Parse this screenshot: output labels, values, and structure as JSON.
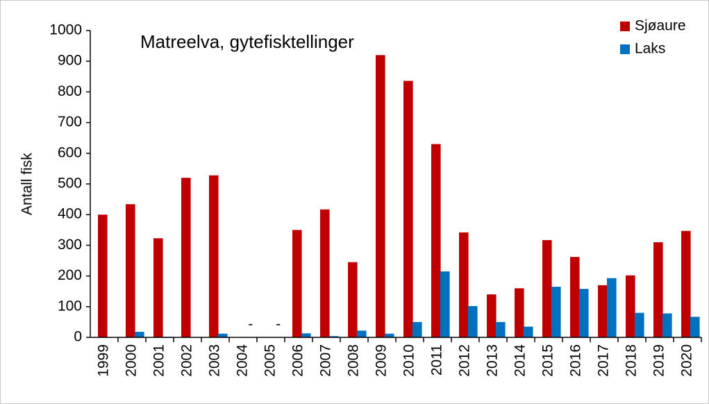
{
  "chart_data": {
    "type": "bar",
    "title": "Matreelva, gytefisktellinger",
    "ylabel": "Antall fisk",
    "categories": [
      "1999",
      "2000",
      "2001",
      "2002",
      "2003",
      "2004",
      "2005",
      "2006",
      "2007",
      "2008",
      "2009",
      "2010",
      "2011",
      "2012",
      "2013",
      "2014",
      "2015",
      "2016",
      "2017",
      "2018",
      "2019",
      "2020"
    ],
    "series": [
      {
        "name": "Sjøaure",
        "color": "#c00000",
        "values": [
          400,
          434,
          323,
          520,
          528,
          null,
          null,
          350,
          417,
          245,
          920,
          836,
          630,
          342,
          140,
          160,
          317,
          262,
          170,
          202,
          310,
          347
        ]
      },
      {
        "name": "Laks",
        "color": "#0070c0",
        "values": [
          0,
          18,
          2,
          0,
          12,
          null,
          null,
          13,
          4,
          22,
          12,
          50,
          215,
          102,
          50,
          35,
          165,
          158,
          193,
          80,
          78,
          67
        ],
        "value_labels": [
          null,
          null,
          null,
          null,
          null,
          "-",
          "-",
          null,
          null,
          null,
          null,
          null,
          null,
          null,
          null,
          null,
          null,
          null,
          null,
          null,
          null,
          null
        ]
      }
    ],
    "ylim": [
      0,
      1000
    ],
    "yticks": [
      0,
      100,
      200,
      300,
      400,
      500,
      600,
      700,
      800,
      900,
      1000
    ],
    "grid": false,
    "legend": "upper right"
  }
}
